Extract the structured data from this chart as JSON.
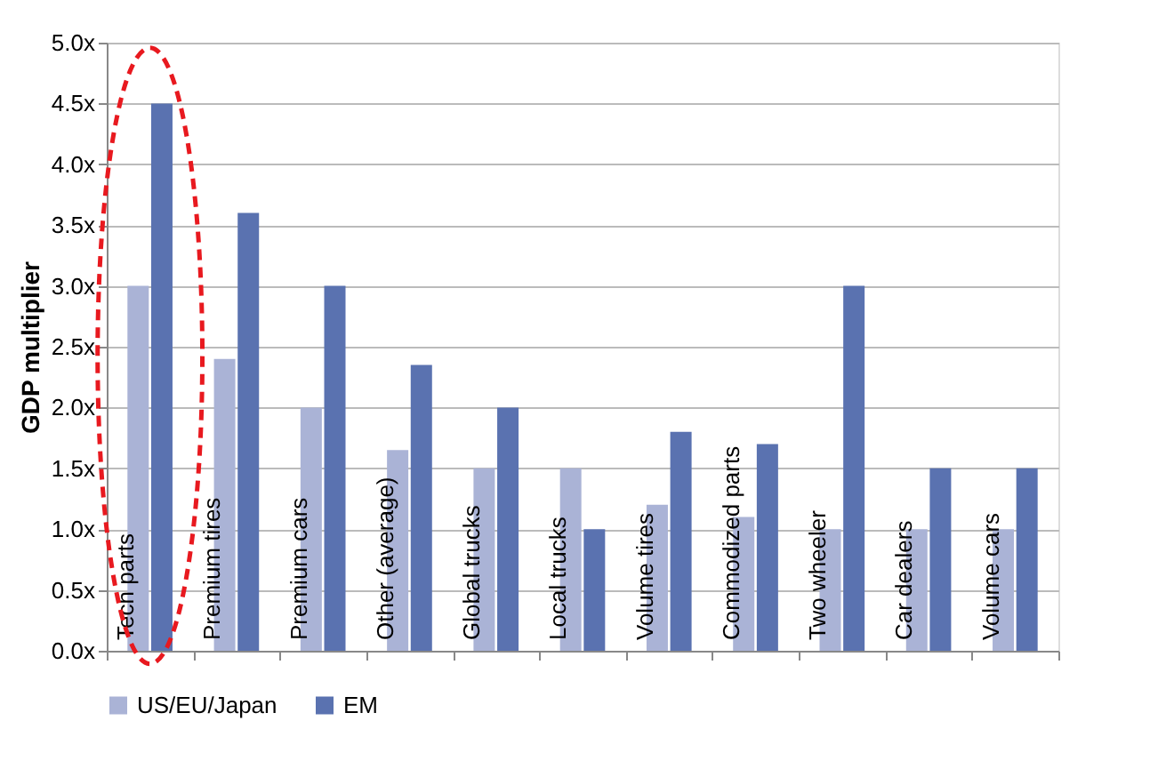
{
  "chart_data": {
    "type": "bar",
    "ylabel": "GDP multiplier",
    "categories": [
      "Tech parts",
      "Premium tires",
      "Premium cars",
      "Other (average)",
      "Global trucks",
      "Local trucks",
      "Volume tires",
      "Commodized parts",
      "Two wheeler",
      "Car dealers",
      "Volume cars"
    ],
    "series": [
      {
        "name": "US/EU/Japan",
        "color": "#aab3d6",
        "values": [
          3.0,
          2.4,
          2.0,
          1.65,
          1.5,
          1.5,
          1.2,
          1.1,
          1.0,
          1.0,
          1.0
        ]
      },
      {
        "name": "EM",
        "color": "#5a72b0",
        "values": [
          4.5,
          3.6,
          3.0,
          2.35,
          2.0,
          1.0,
          1.8,
          1.7,
          3.0,
          1.5,
          1.5
        ]
      }
    ],
    "ylim": [
      0,
      5
    ],
    "yticks": [
      {
        "value": 0,
        "label": "0.0x"
      },
      {
        "value": 0.5,
        "label": "0.5x"
      },
      {
        "value": 1,
        "label": "1.0x"
      },
      {
        "value": 1.5,
        "label": "1.5x"
      },
      {
        "value": 2,
        "label": "2.0x"
      },
      {
        "value": 2.5,
        "label": "2.5x"
      },
      {
        "value": 3,
        "label": "3.0x"
      },
      {
        "value": 3.5,
        "label": "3.5x"
      },
      {
        "value": 4,
        "label": "4.0x"
      },
      {
        "value": 4.5,
        "label": "4.5x"
      },
      {
        "value": 5,
        "label": "5.0x"
      }
    ],
    "grid": "y",
    "legend": "bottom",
    "tick_labels": "y"
  }
}
